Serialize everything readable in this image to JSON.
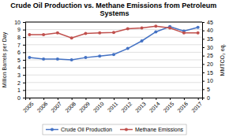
{
  "chart_data": {
    "type": "line",
    "title": "Crude Oil Production vs. Methane Emissions from Petroleum Systems",
    "x": [
      2005,
      2006,
      2007,
      2008,
      2009,
      2010,
      2011,
      2012,
      2013,
      2014,
      2015,
      2016,
      2017
    ],
    "xlim": [
      2004.7,
      2017.3
    ],
    "xticks": [
      2005,
      2006,
      2007,
      2008,
      2009,
      2010,
      2011,
      2012,
      2013,
      2014,
      2015,
      2016,
      2017
    ],
    "ylabel": "Million Barrels per Day",
    "y2label": "MMTCO₂ eq.",
    "ylim": [
      0,
      10
    ],
    "yticks": [
      0,
      1,
      2,
      3,
      4,
      5,
      6,
      7,
      8,
      9,
      10
    ],
    "y2lim": [
      0,
      45
    ],
    "y2ticks": [
      0,
      5,
      10,
      15,
      20,
      25,
      30,
      35,
      40,
      45
    ],
    "grid": true,
    "legend": "bottom",
    "series": [
      {
        "name": "Crude Oil Production",
        "color": "#4472C4",
        "marker": "circle",
        "values": [
          5.3,
          5.1,
          5.1,
          5.0,
          5.3,
          5.5,
          5.7,
          6.5,
          7.5,
          8.7,
          9.4,
          8.8,
          9.3
        ]
      },
      {
        "name": "Methane Emissions",
        "color": "#C0504D",
        "marker": "circle",
        "axis": "y2",
        "values": [
          37.5,
          37.5,
          38.5,
          35.5,
          38.2,
          38.5,
          38.8,
          41.0,
          41.5,
          42.5,
          41.5,
          38.5,
          38.5
        ]
      }
    ]
  }
}
